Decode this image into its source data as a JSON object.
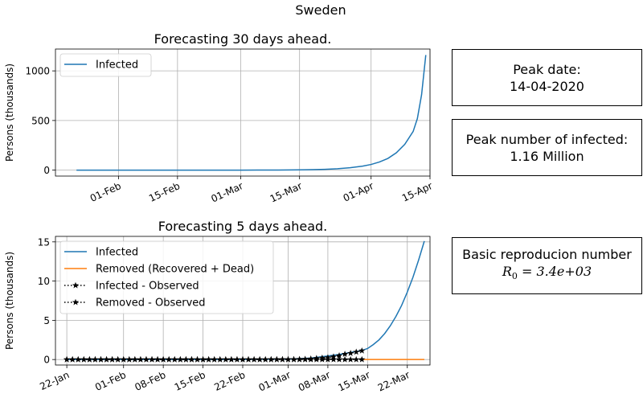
{
  "figure": {
    "suptitle": "Sweden"
  },
  "info_boxes": {
    "peak_date_label": "Peak date:",
    "peak_date_value": "14-04-2020",
    "peak_number_label": "Peak number of infected:",
    "peak_number_value": "1.16 Million",
    "r0_label": "Basic reproducion number",
    "r0_value_text": "3.4e+03"
  },
  "colors": {
    "infected": "#1f77b4",
    "removed": "#ff7f0e",
    "observed": "#000000",
    "grid": "#b0b0b0"
  },
  "chart_data": [
    {
      "type": "line",
      "title": "Forecasting 30 days ahead.",
      "xlabel": "",
      "ylabel": "Persons (thousands)",
      "x_type": "date",
      "xlim": [
        "2020-01-17",
        "2020-04-15"
      ],
      "ylim": [
        -60,
        1220
      ],
      "x_ticks": [
        {
          "date": "2020-02-01",
          "label": "01-Feb"
        },
        {
          "date": "2020-02-15",
          "label": "15-Feb"
        },
        {
          "date": "2020-03-01",
          "label": "01-Mar"
        },
        {
          "date": "2020-03-15",
          "label": "15-Mar"
        },
        {
          "date": "2020-04-01",
          "label": "01-Apr"
        },
        {
          "date": "2020-04-15",
          "label": "15-Apr"
        }
      ],
      "y_ticks": [
        0,
        500,
        1000
      ],
      "grid": true,
      "legend": {
        "position": "upper left",
        "entries": [
          "Infected"
        ]
      },
      "series": [
        {
          "name": "Infected",
          "style": "line",
          "color": "#1f77b4",
          "x": [
            "2020-01-22",
            "2020-02-01",
            "2020-02-10",
            "2020-02-20",
            "2020-03-01",
            "2020-03-05",
            "2020-03-10",
            "2020-03-15",
            "2020-03-18",
            "2020-03-21",
            "2020-03-24",
            "2020-03-27",
            "2020-03-30",
            "2020-04-01",
            "2020-04-03",
            "2020-04-05",
            "2020-04-07",
            "2020-04-09",
            "2020-04-11",
            "2020-04-12",
            "2020-04-13",
            "2020-04-14"
          ],
          "y": [
            0,
            0,
            0,
            0,
            0.2,
            0.5,
            1.2,
            2.5,
            4.5,
            8,
            14,
            24,
            40,
            57,
            82,
            118,
            175,
            260,
            390,
            520,
            760,
            1160
          ]
        }
      ]
    },
    {
      "type": "line",
      "title": "Forecasting 5 days ahead.",
      "xlabel": "",
      "ylabel": "Persons (thousands)",
      "x_type": "date",
      "xlim": [
        "2020-01-20",
        "2020-03-26"
      ],
      "ylim": [
        -0.7,
        15.7
      ],
      "x_ticks": [
        {
          "date": "2020-01-22",
          "label": "22-Jan"
        },
        {
          "date": "2020-02-01",
          "label": "01-Feb"
        },
        {
          "date": "2020-02-08",
          "label": "08-Feb"
        },
        {
          "date": "2020-02-15",
          "label": "15-Feb"
        },
        {
          "date": "2020-02-22",
          "label": "22-Feb"
        },
        {
          "date": "2020-03-01",
          "label": "01-Mar"
        },
        {
          "date": "2020-03-08",
          "label": "08-Mar"
        },
        {
          "date": "2020-03-15",
          "label": "15-Mar"
        },
        {
          "date": "2020-03-22",
          "label": "22-Mar"
        }
      ],
      "y_ticks": [
        0,
        5,
        10,
        15
      ],
      "grid": true,
      "legend": {
        "position": "upper left",
        "entries": [
          "Infected",
          "Removed (Recovered + Dead)",
          "Infected - Observed",
          "Removed - Observed"
        ]
      },
      "series": [
        {
          "name": "Infected",
          "style": "line",
          "color": "#1f77b4",
          "x": [
            "2020-01-22",
            "2020-02-01",
            "2020-02-10",
            "2020-02-20",
            "2020-03-01",
            "2020-03-05",
            "2020-03-08",
            "2020-03-10",
            "2020-03-12",
            "2020-03-14",
            "2020-03-15",
            "2020-03-16",
            "2020-03-17",
            "2020-03-18",
            "2020-03-19",
            "2020-03-20",
            "2020-03-21",
            "2020-03-22",
            "2020-03-23",
            "2020-03-24",
            "2020-03-25"
          ],
          "y": [
            0,
            0,
            0,
            0.01,
            0.05,
            0.18,
            0.45,
            0.65,
            0.9,
            1.15,
            1.4,
            1.9,
            2.5,
            3.3,
            4.3,
            5.5,
            6.9,
            8.6,
            10.5,
            12.7,
            15.1
          ]
        },
        {
          "name": "Removed (Recovered + Dead)",
          "style": "line",
          "color": "#ff7f0e",
          "x": [
            "2020-03-14",
            "2020-03-25"
          ],
          "y": [
            0,
            0
          ]
        },
        {
          "name": "Infected - Observed",
          "style": "dotted-star",
          "color": "#000000",
          "x": [
            "2020-01-22",
            "2020-01-23",
            "2020-01-24",
            "2020-01-25",
            "2020-01-26",
            "2020-01-27",
            "2020-01-28",
            "2020-01-29",
            "2020-01-30",
            "2020-01-31",
            "2020-02-01",
            "2020-02-02",
            "2020-02-03",
            "2020-02-04",
            "2020-02-05",
            "2020-02-06",
            "2020-02-07",
            "2020-02-08",
            "2020-02-09",
            "2020-02-10",
            "2020-02-11",
            "2020-02-12",
            "2020-02-13",
            "2020-02-14",
            "2020-02-15",
            "2020-02-16",
            "2020-02-17",
            "2020-02-18",
            "2020-02-19",
            "2020-02-20",
            "2020-02-21",
            "2020-02-22",
            "2020-02-23",
            "2020-02-24",
            "2020-02-25",
            "2020-02-26",
            "2020-02-27",
            "2020-02-28",
            "2020-02-29",
            "2020-03-01",
            "2020-03-02",
            "2020-03-03",
            "2020-03-04",
            "2020-03-05",
            "2020-03-06",
            "2020-03-07",
            "2020-03-08",
            "2020-03-09",
            "2020-03-10",
            "2020-03-11",
            "2020-03-12",
            "2020-03-13",
            "2020-03-14"
          ],
          "y": [
            0,
            0,
            0,
            0,
            0,
            0,
            0,
            0,
            0,
            0.001,
            0.001,
            0.001,
            0.001,
            0.001,
            0.001,
            0.001,
            0.001,
            0.001,
            0.001,
            0.001,
            0.001,
            0.001,
            0.001,
            0.001,
            0.001,
            0.001,
            0.001,
            0.001,
            0.001,
            0.001,
            0.001,
            0.001,
            0.001,
            0.001,
            0.001,
            0.002,
            0.007,
            0.012,
            0.013,
            0.014,
            0.015,
            0.03,
            0.05,
            0.09,
            0.15,
            0.2,
            0.25,
            0.36,
            0.5,
            0.69,
            0.8,
            0.96,
            1.12
          ]
        },
        {
          "name": "Removed - Observed",
          "style": "dotted-star",
          "color": "#000000",
          "x": [
            "2020-01-22",
            "2020-01-23",
            "2020-01-24",
            "2020-01-25",
            "2020-01-26",
            "2020-01-27",
            "2020-01-28",
            "2020-01-29",
            "2020-01-30",
            "2020-01-31",
            "2020-02-01",
            "2020-02-02",
            "2020-02-03",
            "2020-02-04",
            "2020-02-05",
            "2020-02-06",
            "2020-02-07",
            "2020-02-08",
            "2020-02-09",
            "2020-02-10",
            "2020-02-11",
            "2020-02-12",
            "2020-02-13",
            "2020-02-14",
            "2020-02-15",
            "2020-02-16",
            "2020-02-17",
            "2020-02-18",
            "2020-02-19",
            "2020-02-20",
            "2020-02-21",
            "2020-02-22",
            "2020-02-23",
            "2020-02-24",
            "2020-02-25",
            "2020-02-26",
            "2020-02-27",
            "2020-02-28",
            "2020-02-29",
            "2020-03-01",
            "2020-03-02",
            "2020-03-03",
            "2020-03-04",
            "2020-03-05",
            "2020-03-06",
            "2020-03-07",
            "2020-03-08",
            "2020-03-09",
            "2020-03-10",
            "2020-03-11",
            "2020-03-12",
            "2020-03-13",
            "2020-03-14"
          ],
          "y": [
            0,
            0,
            0,
            0,
            0,
            0,
            0,
            0,
            0,
            0,
            0,
            0,
            0,
            0,
            0,
            0,
            0,
            0,
            0,
            0,
            0,
            0,
            0,
            0,
            0,
            0,
            0,
            0,
            0,
            0,
            0,
            0,
            0,
            0,
            0,
            0,
            0,
            0,
            0,
            0,
            0,
            0,
            0,
            0,
            0,
            0,
            0,
            0,
            0,
            0.001,
            0.002,
            0.002,
            0.003
          ]
        }
      ]
    }
  ]
}
